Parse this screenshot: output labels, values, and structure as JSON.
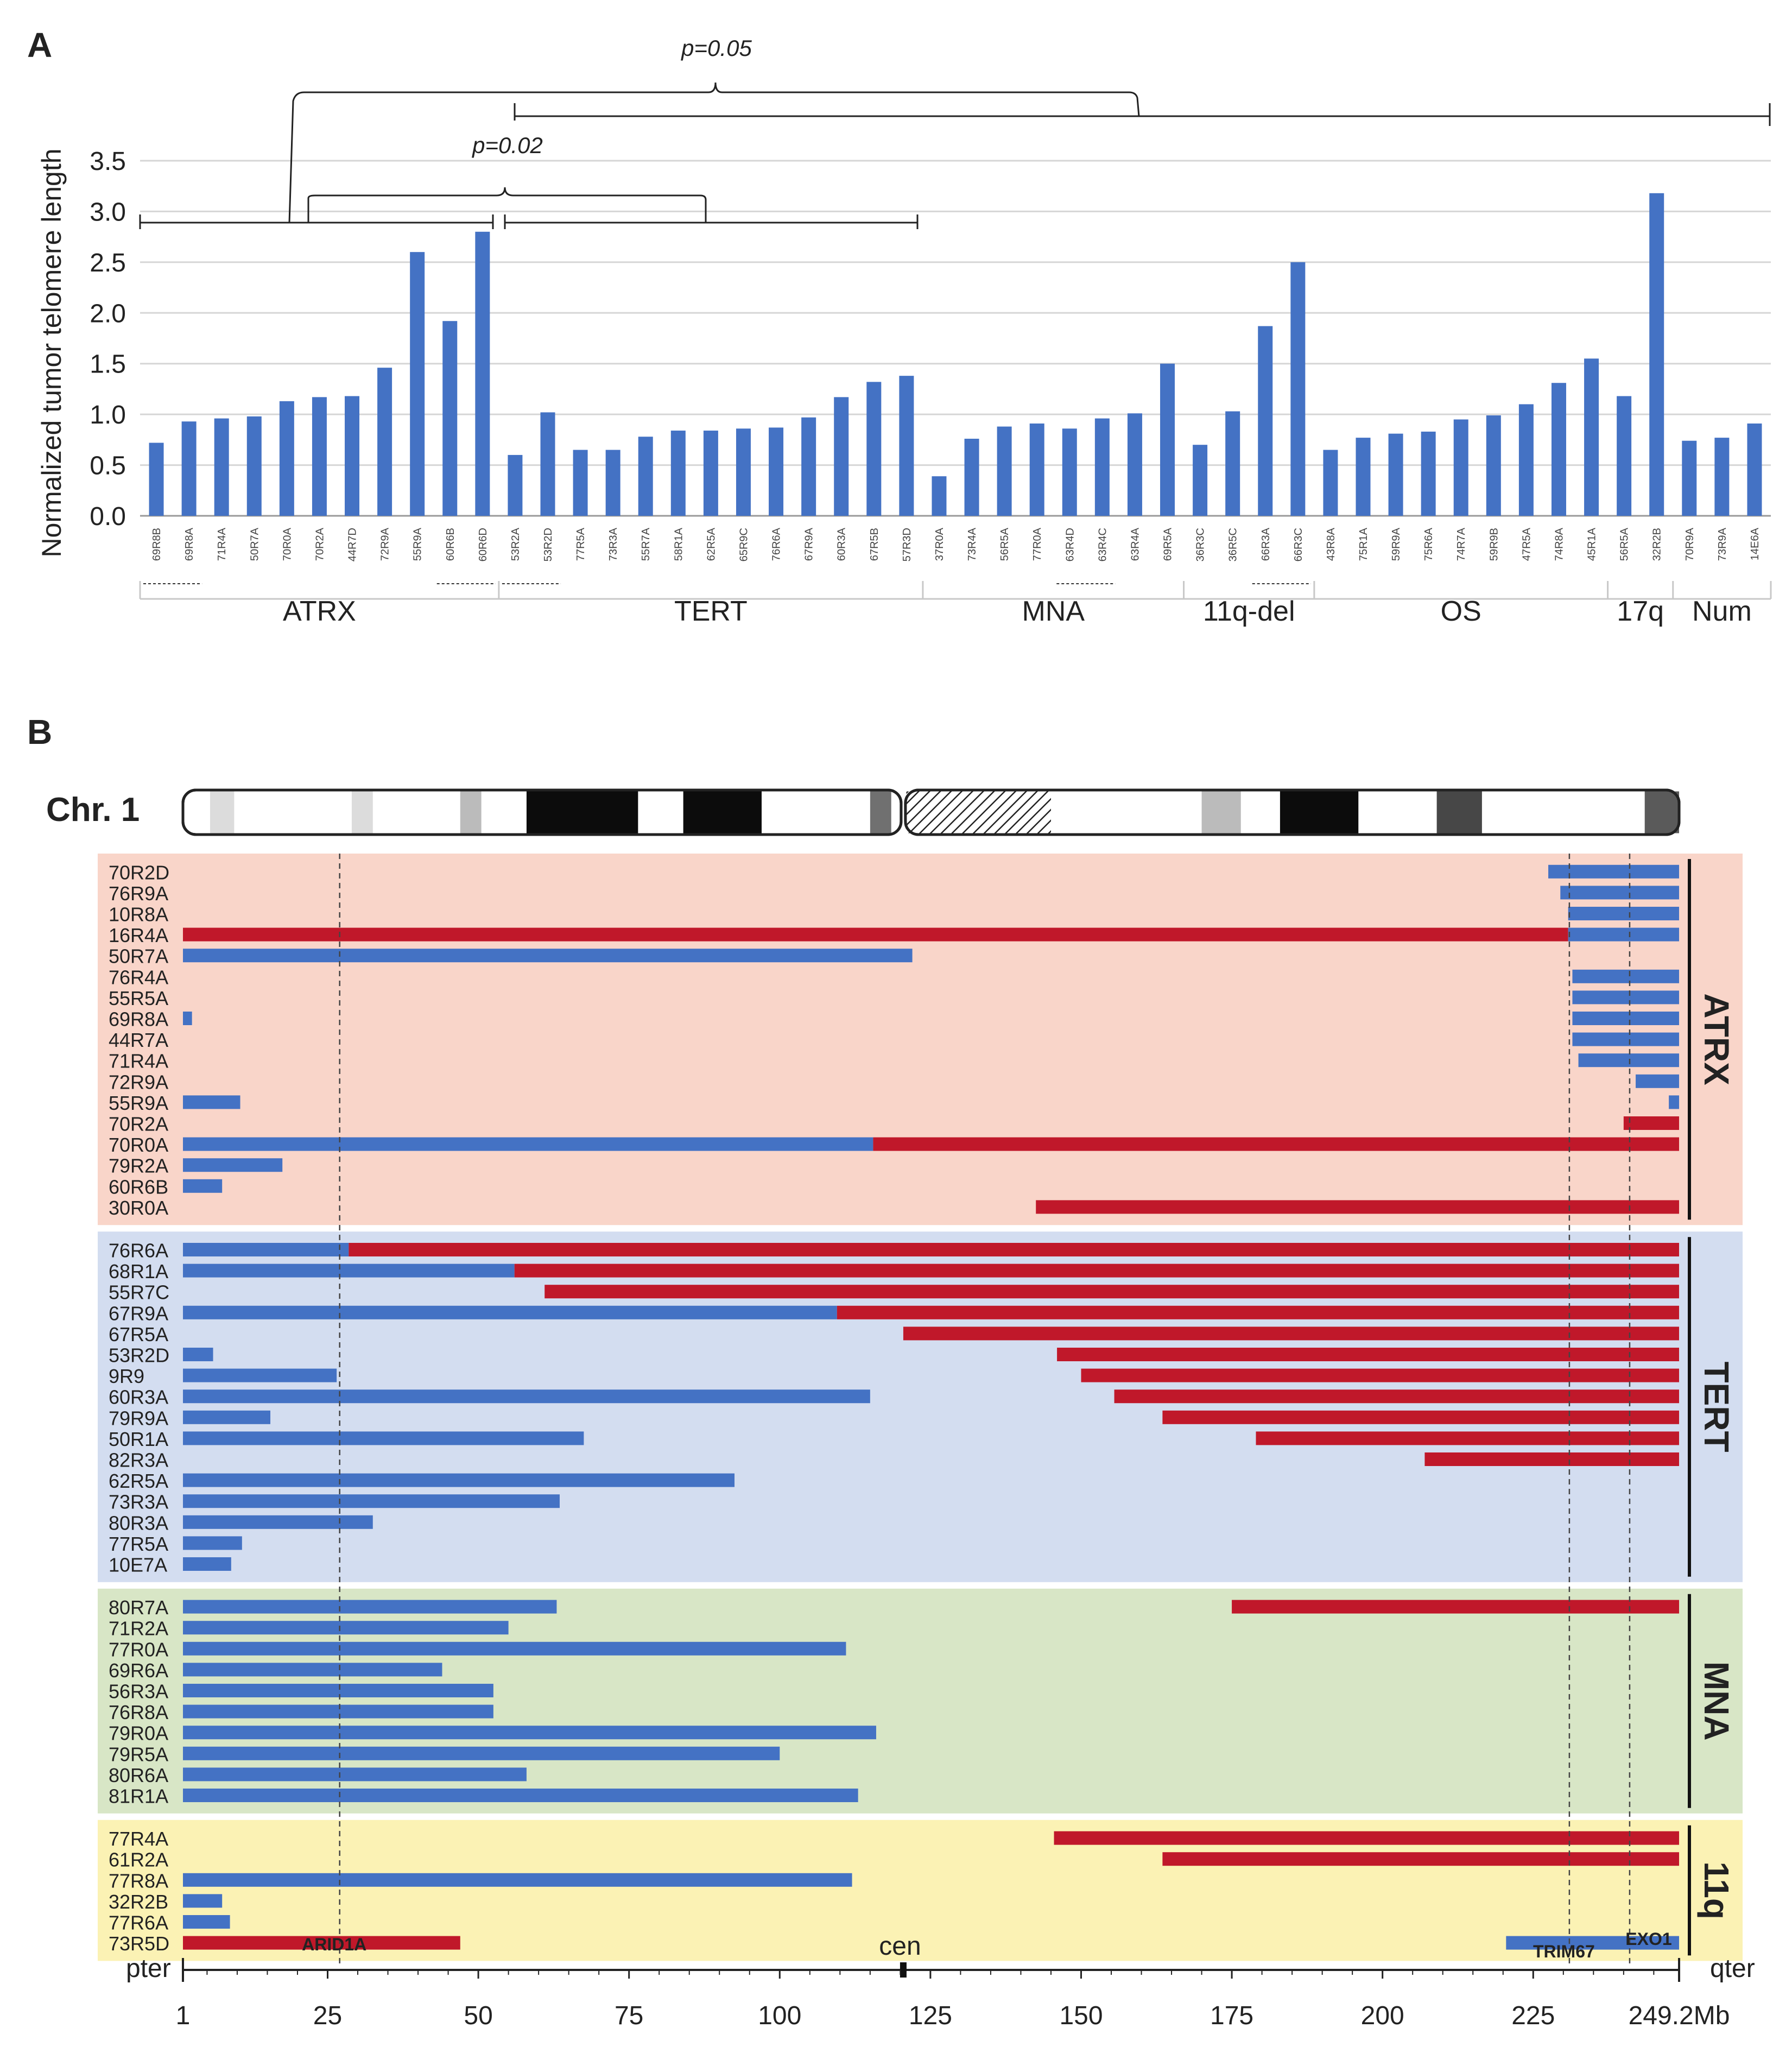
{
  "chart_data": [
    {
      "panel": "A",
      "type": "bar",
      "ylabel": "Normalized tumor telomere length",
      "ylim": [
        0,
        3.5
      ],
      "yticks": [
        "0.0",
        "0.5",
        "1.0",
        "1.5",
        "2.0",
        "2.5",
        "3.0",
        "3.5"
      ],
      "color": "#4472c4",
      "samples": [
        "69R8B",
        "69R8A",
        "71R4A",
        "50R7A",
        "70R0A",
        "70R2A",
        "44R7D",
        "72R9A",
        "55R9A",
        "60R6B",
        "60R6D",
        "53R2A",
        "53R2D",
        "77R5A",
        "73R3A",
        "55R7A",
        "58R1A",
        "62R5A",
        "65R9C",
        "76R6A",
        "67R9A",
        "60R3A",
        "67R5B",
        "57R3D",
        "37R0A",
        "73R4A",
        "56R5A",
        "77R0A",
        "63R4D",
        "63R4C",
        "63R4A",
        "69R5A",
        "36R3C",
        "36R5C",
        "66R3A",
        "66R3C",
        "43R8A",
        "75R1A",
        "59R9A",
        "75R6A",
        "74R7A",
        "59R9B",
        "47R5A",
        "74R8A",
        "45R1A",
        "56R5A",
        "32R2B",
        "70R9A",
        "73R9A",
        "14E6A"
      ],
      "values": [
        0.72,
        0.93,
        0.96,
        0.98,
        1.13,
        1.17,
        1.18,
        1.46,
        2.6,
        1.92,
        2.8,
        0.6,
        1.02,
        0.65,
        0.65,
        0.78,
        0.84,
        0.84,
        0.86,
        0.87,
        0.97,
        1.17,
        1.32,
        1.38,
        0.39,
        0.76,
        0.88,
        0.91,
        0.86,
        0.96,
        1.01,
        1.5,
        0.7,
        1.03,
        1.87,
        2.5,
        0.65,
        0.77,
        0.81,
        0.83,
        0.95,
        0.99,
        1.1,
        1.31,
        1.55,
        1.18,
        3.18,
        0.74,
        0.77,
        0.91
      ],
      "groups": [
        {
          "name": "ATRX",
          "count": 11
        },
        {
          "name": "TERT",
          "count": 13
        },
        {
          "name": "MNA",
          "count": 8
        },
        {
          "name": "11q-del",
          "count": 4
        },
        {
          "name": "OS",
          "count": 9
        },
        {
          "name": "17q",
          "count": 2
        },
        {
          "name": "Num",
          "count": 3
        }
      ],
      "paired_underlines": [
        [
          0,
          1
        ],
        [
          9,
          10
        ],
        [
          11,
          12
        ],
        [
          28,
          29
        ],
        [
          34,
          35
        ]
      ],
      "annotations": [
        "p=0.05",
        "p=0.02"
      ]
    },
    {
      "panel": "B",
      "type": "bar",
      "chromosome_label": "Chr. 1",
      "xlim": [
        1,
        249.2
      ],
      "xticks": [
        "1",
        "25",
        "50",
        "75",
        "100",
        "125",
        "150",
        "175",
        "200",
        "225",
        "249.2Mb"
      ],
      "axis_ends": {
        "left": "pter",
        "right": "qter",
        "centromere": "cen"
      },
      "genes": [
        {
          "name": "ARID1A",
          "pos": 27
        },
        {
          "name": "TRIM67",
          "pos": 231
        },
        {
          "name": "EXO1",
          "pos": 241
        }
      ],
      "colors": {
        "loss": "#4472c4",
        "gain": "#c0182a"
      },
      "groups": [
        {
          "name": "ATRX",
          "bg": "#f9d5c9",
          "samples": [
            {
              "id": "70R2D",
              "segments": [
                [
                  227.5,
                  249.2,
                  "loss"
                ]
              ]
            },
            {
              "id": "76R9A",
              "segments": [
                [
                  229.5,
                  249.2,
                  "loss"
                ]
              ]
            },
            {
              "id": "10R8A",
              "segments": [
                [
                  230.8,
                  249.2,
                  "loss"
                ]
              ]
            },
            {
              "id": "16R4A",
              "segments": [
                [
                  1,
                  230.8,
                  "gain"
                ],
                [
                  230.8,
                  249.2,
                  "loss"
                ]
              ]
            },
            {
              "id": "50R7A",
              "segments": [
                [
                  1,
                  122,
                  "loss"
                ]
              ]
            },
            {
              "id": "76R4A",
              "segments": [
                [
                  231.5,
                  249.2,
                  "loss"
                ]
              ]
            },
            {
              "id": "55R5A",
              "segments": [
                [
                  231.5,
                  249.2,
                  "loss"
                ]
              ]
            },
            {
              "id": "69R8A",
              "segments": [
                [
                  1,
                  2.5,
                  "loss"
                ],
                [
                  231.5,
                  249.2,
                  "loss"
                ]
              ]
            },
            {
              "id": "44R7A",
              "segments": [
                [
                  231.5,
                  249.2,
                  "loss"
                ]
              ]
            },
            {
              "id": "71R4A",
              "segments": [
                [
                  232.5,
                  249.2,
                  "loss"
                ]
              ]
            },
            {
              "id": "72R9A",
              "segments": [
                [
                  242,
                  249.2,
                  "loss"
                ]
              ]
            },
            {
              "id": "55R9A",
              "segments": [
                [
                  1,
                  10.5,
                  "loss"
                ],
                [
                  247.5,
                  249.2,
                  "loss"
                ]
              ]
            },
            {
              "id": "70R2A",
              "segments": [
                [
                  240,
                  249.2,
                  "gain"
                ]
              ]
            },
            {
              "id": "70R0A",
              "segments": [
                [
                  1,
                  115.5,
                  "loss"
                ],
                [
                  115.5,
                  249.2,
                  "gain"
                ]
              ]
            },
            {
              "id": "79R2A",
              "segments": [
                [
                  1,
                  17.5,
                  "loss"
                ]
              ]
            },
            {
              "id": "60R6B",
              "segments": [
                [
                  1,
                  7.5,
                  "loss"
                ]
              ]
            },
            {
              "id": "30R0A",
              "segments": [
                [
                  142.5,
                  249.2,
                  "gain"
                ]
              ]
            }
          ]
        },
        {
          "name": "TERT",
          "bg": "#d3ddf0",
          "samples": [
            {
              "id": "76R6A",
              "segments": [
                [
                  1,
                  28.5,
                  "loss"
                ],
                [
                  28.5,
                  249.2,
                  "gain"
                ]
              ]
            },
            {
              "id": "68R1A",
              "segments": [
                [
                  1,
                  56,
                  "loss"
                ],
                [
                  56,
                  249.2,
                  "gain"
                ]
              ]
            },
            {
              "id": "55R7C",
              "segments": [
                [
                  61,
                  249.2,
                  "gain"
                ]
              ]
            },
            {
              "id": "67R9A",
              "segments": [
                [
                  1,
                  109.5,
                  "loss"
                ],
                [
                  109.5,
                  249.2,
                  "gain"
                ]
              ]
            },
            {
              "id": "67R5A",
              "segments": [
                [
                  120.5,
                  249.2,
                  "gain"
                ]
              ]
            },
            {
              "id": "53R2D",
              "segments": [
                [
                  1,
                  6,
                  "loss"
                ],
                [
                  146,
                  249.2,
                  "gain"
                ]
              ]
            },
            {
              "id": "9R9",
              "segments": [
                [
                  1,
                  26.5,
                  "loss"
                ],
                [
                  150,
                  249.2,
                  "gain"
                ]
              ]
            },
            {
              "id": "60R3A",
              "segments": [
                [
                  1,
                  115,
                  "loss"
                ],
                [
                  155.5,
                  249.2,
                  "gain"
                ]
              ]
            },
            {
              "id": "79R9A",
              "segments": [
                [
                  1,
                  15.5,
                  "loss"
                ],
                [
                  163.5,
                  249.2,
                  "gain"
                ]
              ]
            },
            {
              "id": "50R1A",
              "segments": [
                [
                  1,
                  67.5,
                  "loss"
                ],
                [
                  179,
                  249.2,
                  "gain"
                ]
              ]
            },
            {
              "id": "82R3A",
              "segments": [
                [
                  207,
                  249.2,
                  "gain"
                ]
              ]
            },
            {
              "id": "62R5A",
              "segments": [
                [
                  1,
                  92.5,
                  "loss"
                ]
              ]
            },
            {
              "id": "73R3A",
              "segments": [
                [
                  1,
                  63.5,
                  "loss"
                ]
              ]
            },
            {
              "id": "80R3A",
              "segments": [
                [
                  1,
                  32.5,
                  "loss"
                ]
              ]
            },
            {
              "id": "77R5A",
              "segments": [
                [
                  1,
                  10.8,
                  "loss"
                ]
              ]
            },
            {
              "id": "10E7A",
              "segments": [
                [
                  1,
                  9,
                  "loss"
                ]
              ]
            }
          ]
        },
        {
          "name": "MNA",
          "bg": "#d8e6c6",
          "samples": [
            {
              "id": "80R7A",
              "segments": [
                [
                  1,
                  63,
                  "loss"
                ],
                [
                  175,
                  249.2,
                  "gain"
                ]
              ]
            },
            {
              "id": "71R2A",
              "segments": [
                [
                  1,
                  55,
                  "loss"
                ]
              ]
            },
            {
              "id": "77R0A",
              "segments": [
                [
                  1,
                  111,
                  "loss"
                ]
              ]
            },
            {
              "id": "69R6A",
              "segments": [
                [
                  1,
                  44,
                  "loss"
                ]
              ]
            },
            {
              "id": "56R3A",
              "segments": [
                [
                  1,
                  52.5,
                  "loss"
                ]
              ]
            },
            {
              "id": "76R8A",
              "segments": [
                [
                  1,
                  52.5,
                  "loss"
                ]
              ]
            },
            {
              "id": "79R0A",
              "segments": [
                [
                  1,
                  116,
                  "loss"
                ]
              ]
            },
            {
              "id": "79R5A",
              "segments": [
                [
                  1,
                  100,
                  "loss"
                ]
              ]
            },
            {
              "id": "80R6A",
              "segments": [
                [
                  1,
                  58,
                  "loss"
                ]
              ]
            },
            {
              "id": "81R1A",
              "segments": [
                [
                  1,
                  113,
                  "loss"
                ]
              ]
            }
          ]
        },
        {
          "name": "11q",
          "bg": "#fbf2b4",
          "samples": [
            {
              "id": "77R4A",
              "segments": [
                [
                  145.5,
                  249.2,
                  "gain"
                ]
              ]
            },
            {
              "id": "61R2A",
              "segments": [
                [
                  163.5,
                  249.2,
                  "gain"
                ]
              ]
            },
            {
              "id": "77R8A",
              "segments": [
                [
                  1,
                  112,
                  "loss"
                ]
              ]
            },
            {
              "id": "32R2B",
              "segments": [
                [
                  1,
                  7.5,
                  "loss"
                ]
              ]
            },
            {
              "id": "77R6A",
              "segments": [
                [
                  1,
                  8.8,
                  "loss"
                ]
              ]
            },
            {
              "id": "73R5D",
              "segments": [
                [
                  1,
                  47,
                  "gain"
                ],
                [
                  220.5,
                  249.2,
                  "loss"
                ]
              ]
            }
          ]
        }
      ],
      "ideogram_bands": [
        {
          "from": 5.5,
          "to": 9.5,
          "stain": "#dcdcdc"
        },
        {
          "from": 29,
          "to": 32.5,
          "stain": "#dcdcdc"
        },
        {
          "from": 47,
          "to": 50.5,
          "stain": "#bbbbbb"
        },
        {
          "from": 58,
          "to": 76.5,
          "stain": "#0c0c0c"
        },
        {
          "from": 84,
          "to": 97,
          "stain": "#0c0c0c"
        },
        {
          "from": 115,
          "to": 118.5,
          "stain": "#707070"
        },
        {
          "from": 121,
          "to": 145,
          "stain": "hatched"
        },
        {
          "from": 170,
          "to": 176.5,
          "stain": "#bbbbbb"
        },
        {
          "from": 183,
          "to": 196,
          "stain": "#0c0c0c"
        },
        {
          "from": 209,
          "to": 216.5,
          "stain": "#474747"
        },
        {
          "from": 243.5,
          "to": 249.2,
          "stain": "#5a5a5a"
        }
      ]
    }
  ],
  "panel_labels": {
    "a": "A",
    "b": "B"
  }
}
